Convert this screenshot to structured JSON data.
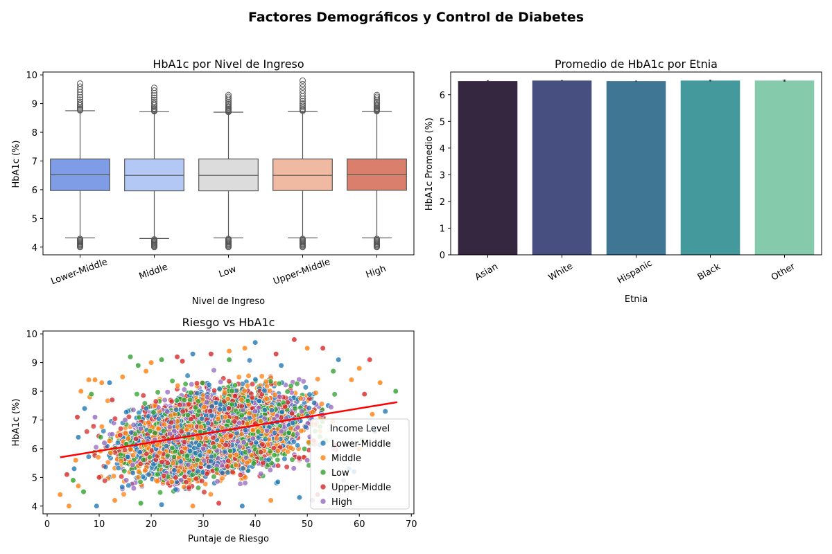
{
  "figure_title": "Factores Demográficos y Control de Diabetes",
  "chart_data": [
    {
      "type": "box",
      "title": "HbA1c por Nivel de Ingreso",
      "xlabel": "Nivel de Ingreso",
      "ylabel": "HbA1c (%)",
      "ylim": [
        3.73,
        10.1
      ],
      "yticks": [
        4,
        5,
        6,
        7,
        8,
        9,
        10
      ],
      "categories": [
        "Lower-Middle",
        "Middle",
        "Low",
        "Upper-Middle",
        "High"
      ],
      "colors": [
        "#7f9de6",
        "#b3c8f4",
        "#dcdcdc",
        "#efb9a2",
        "#d97f6c"
      ],
      "boxes": [
        {
          "q1": 5.97,
          "median": 6.52,
          "q3": 7.07,
          "whisker_low": 4.32,
          "whisker_high": 8.75,
          "flier_low_min": 4.0,
          "flier_high_max": 9.7
        },
        {
          "q1": 5.96,
          "median": 6.5,
          "q3": 7.07,
          "whisker_low": 4.3,
          "whisker_high": 8.72,
          "flier_low_min": 4.0,
          "flier_high_max": 9.55
        },
        {
          "q1": 5.96,
          "median": 6.5,
          "q3": 7.07,
          "whisker_low": 4.32,
          "whisker_high": 8.7,
          "flier_low_min": 4.0,
          "flier_high_max": 9.3
        },
        {
          "q1": 5.97,
          "median": 6.5,
          "q3": 7.07,
          "whisker_low": 4.32,
          "whisker_high": 8.73,
          "flier_low_min": 4.0,
          "flier_high_max": 9.8
        },
        {
          "q1": 5.98,
          "median": 6.52,
          "q3": 7.07,
          "whisker_low": 4.32,
          "whisker_high": 8.73,
          "flier_low_min": 4.0,
          "flier_high_max": 9.3
        }
      ]
    },
    {
      "type": "bar",
      "title": "Promedio de HbA1c por Etnia",
      "xlabel": "Etnia",
      "ylabel": "HbA1c Promedio (%)",
      "ylim": [
        0,
        6.85
      ],
      "yticks": [
        0,
        1,
        2,
        3,
        4,
        5,
        6
      ],
      "categories": [
        "Asian",
        "White",
        "Hispanic",
        "Black",
        "Other"
      ],
      "values": [
        6.51,
        6.53,
        6.51,
        6.53,
        6.53
      ],
      "errors": [
        0.03,
        0.02,
        0.02,
        0.03,
        0.04
      ],
      "colors": [
        "#35273f",
        "#474e80",
        "#3f7694",
        "#43999b",
        "#84caab"
      ]
    },
    {
      "type": "scatter",
      "title": "Riesgo vs HbA1c",
      "xlabel": "Puntaje de Riesgo",
      "ylabel": "HbA1c (%)",
      "xlim": [
        -0.8,
        70.5
      ],
      "ylim": [
        3.73,
        10.1
      ],
      "xticks": [
        0,
        10,
        20,
        30,
        40,
        50,
        60,
        70
      ],
      "yticks": [
        4,
        5,
        6,
        7,
        8,
        9,
        10
      ],
      "legend": {
        "title": "Income Level",
        "placement": "lower-right",
        "entries": [
          "Lower-Middle",
          "Middle",
          "Low",
          "Upper-Middle",
          "High"
        ],
        "colors": [
          "#1f77b4",
          "#ff7f0e",
          "#2ca02c",
          "#d62728",
          "#9467bd"
        ]
      },
      "regression": {
        "x": [
          2.5,
          67.3
        ],
        "y": [
          5.7,
          7.62
        ],
        "color": "#ff0000"
      },
      "points": [
        [
          2.5,
          4.4,
          1
        ],
        [
          4.2,
          4.0,
          1
        ],
        [
          3.8,
          5.1,
          3
        ],
        [
          5.8,
          7.1,
          3
        ],
        [
          6.5,
          8.0,
          1
        ],
        [
          8.0,
          8.4,
          1
        ],
        [
          9.2,
          8.4,
          1
        ],
        [
          12.0,
          8.3,
          0
        ],
        [
          14.5,
          8.5,
          1
        ],
        [
          16.0,
          9.2,
          2
        ],
        [
          17.5,
          8.9,
          2
        ],
        [
          20.0,
          9.0,
          1
        ],
        [
          22.0,
          9.1,
          2
        ],
        [
          25.0,
          9.2,
          3
        ],
        [
          28.0,
          9.3,
          0
        ],
        [
          31.5,
          9.3,
          3
        ],
        [
          35.0,
          9.4,
          1
        ],
        [
          38.0,
          9.5,
          1
        ],
        [
          40.0,
          9.7,
          0
        ],
        [
          44.0,
          9.3,
          3
        ],
        [
          47.5,
          9.8,
          3
        ],
        [
          50.0,
          9.5,
          1
        ],
        [
          53.0,
          9.5,
          3
        ],
        [
          56.0,
          9.1,
          0
        ],
        [
          60.0,
          8.8,
          1
        ],
        [
          62.0,
          9.1,
          3
        ],
        [
          64.0,
          8.3,
          1
        ],
        [
          67.0,
          8.0,
          2
        ],
        [
          65.0,
          7.3,
          0
        ],
        [
          60.0,
          6.0,
          1
        ],
        [
          58.0,
          5.3,
          0
        ],
        [
          52.0,
          4.4,
          3
        ],
        [
          48.5,
          4.3,
          0
        ],
        [
          43.0,
          4.2,
          1
        ],
        [
          37.5,
          4.0,
          0
        ],
        [
          33.0,
          4.1,
          3
        ],
        [
          28.0,
          4.0,
          1
        ],
        [
          22.0,
          4.05,
          0
        ],
        [
          18.0,
          4.1,
          2
        ],
        [
          13.0,
          4.2,
          1
        ],
        [
          9.5,
          4.0,
          0
        ],
        [
          7.0,
          4.5,
          2
        ],
        [
          5.0,
          4.9,
          2
        ],
        [
          6.0,
          4.7,
          1
        ],
        [
          5.2,
          5.3,
          0
        ],
        [
          5.5,
          5.6,
          1
        ],
        [
          6.0,
          6.4,
          0
        ],
        [
          7.2,
          7.4,
          0
        ],
        [
          8.2,
          7.8,
          1
        ],
        [
          8.5,
          7.9,
          2
        ],
        [
          10.0,
          5.0,
          3
        ],
        [
          11.0,
          6.2,
          4
        ],
        [
          12.5,
          6.5,
          4
        ],
        [
          18.0,
          6.7,
          4
        ],
        [
          25.0,
          6.4,
          4
        ],
        [
          30.0,
          6.0,
          4
        ],
        [
          34.0,
          6.6,
          4
        ],
        [
          40.0,
          7.3,
          4
        ],
        [
          45.0,
          6.6,
          4
        ],
        [
          50.0,
          5.6,
          4
        ],
        [
          55.0,
          6.0,
          4
        ],
        [
          57.0,
          4.9,
          4
        ],
        [
          9.2,
          7.1,
          4
        ],
        [
          15.0,
          7.0,
          4
        ],
        [
          51.0,
          4.2,
          4
        ],
        [
          59.0,
          5.2,
          0
        ],
        [
          60.5,
          6.3,
          2
        ],
        [
          62.5,
          7.2,
          1
        ],
        [
          63.0,
          6.6,
          0
        ],
        [
          61.0,
          7.9,
          3
        ],
        [
          58.5,
          8.4,
          1
        ],
        [
          55.0,
          8.7,
          2
        ],
        [
          45.0,
          8.9,
          0
        ],
        [
          35.0,
          9.1,
          2
        ],
        [
          26.0,
          9.05,
          3
        ],
        [
          19.0,
          8.7,
          1
        ],
        [
          12.5,
          7.7,
          3
        ],
        [
          10.5,
          8.3,
          1
        ]
      ]
    }
  ]
}
